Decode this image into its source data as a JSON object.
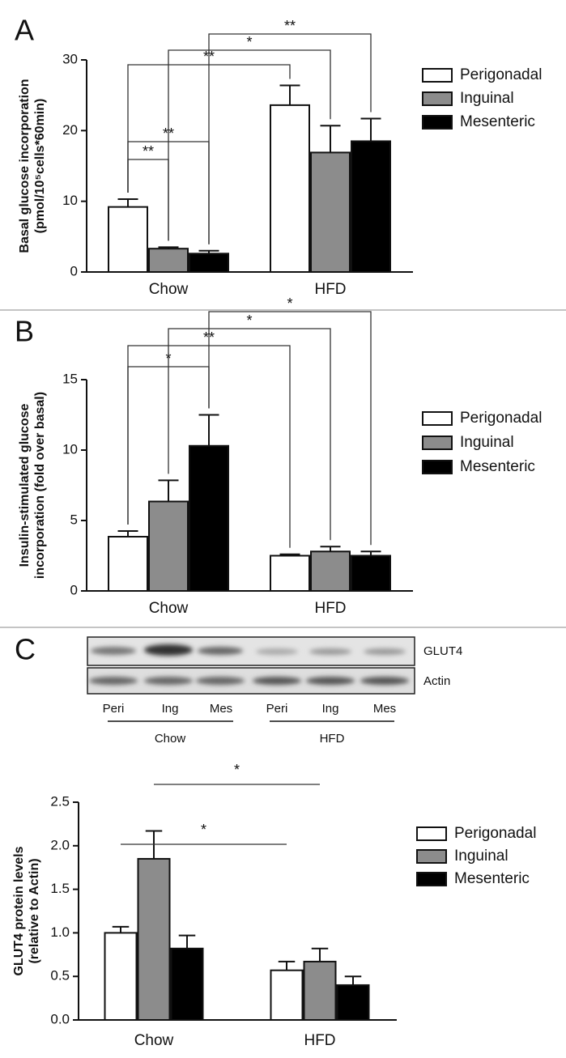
{
  "chart_data": [
    {
      "panel": "A",
      "type": "bar",
      "ylabel": [
        "Basal glucose incorporation",
        "(pmol/10⁵cells*60min)"
      ],
      "categories": [
        "Chow",
        "HFD"
      ],
      "series": [
        {
          "name": "Perigonadal",
          "color": "#ffffff",
          "values": [
            9.2,
            23.6
          ],
          "errors": [
            1.1,
            2.8
          ]
        },
        {
          "name": "Inguinal",
          "color": "#8c8c8c",
          "values": [
            3.3,
            16.9
          ],
          "errors": [
            0.2,
            3.8
          ]
        },
        {
          "name": "Mesenteric",
          "color": "#000000",
          "values": [
            2.6,
            18.5
          ],
          "errors": [
            0.4,
            3.2
          ]
        }
      ],
      "ylim": [
        0,
        30
      ],
      "yticks": [
        0,
        10,
        20,
        30
      ],
      "bracket_legs": true,
      "annotations": [
        {
          "label": "**",
          "from": [
            0,
            0
          ],
          "to": [
            1,
            0
          ]
        },
        {
          "label": "**",
          "from": [
            0,
            0
          ],
          "to": [
            2,
            0
          ]
        },
        {
          "label": "**",
          "from": [
            0,
            0
          ],
          "to": [
            0,
            1
          ]
        },
        {
          "label": "*",
          "from": [
            1,
            0
          ],
          "to": [
            1,
            1
          ]
        },
        {
          "label": "**",
          "from": [
            2,
            0
          ],
          "to": [
            2,
            1
          ]
        }
      ]
    },
    {
      "panel": "B",
      "type": "bar",
      "ylabel": [
        "Insulin-stimulated glucose",
        "incorporation (fold over basal)"
      ],
      "categories": [
        "Chow",
        "HFD"
      ],
      "series": [
        {
          "name": "Perigonadal",
          "color": "#ffffff",
          "values": [
            3.85,
            2.5
          ],
          "errors": [
            0.4,
            0.1
          ]
        },
        {
          "name": "Inguinal",
          "color": "#8c8c8c",
          "values": [
            6.35,
            2.8
          ],
          "errors": [
            1.5,
            0.35
          ]
        },
        {
          "name": "Mesenteric",
          "color": "#000000",
          "values": [
            10.3,
            2.5
          ],
          "errors": [
            2.2,
            0.3
          ]
        }
      ],
      "ylim": [
        0,
        15
      ],
      "yticks": [
        0,
        5,
        10,
        15
      ],
      "bracket_legs": true,
      "annotations": [
        {
          "label": "*",
          "from": [
            0,
            0
          ],
          "to": [
            2,
            0
          ]
        },
        {
          "label": "**",
          "from": [
            0,
            0
          ],
          "to": [
            0,
            1
          ]
        },
        {
          "label": "*",
          "from": [
            1,
            0
          ],
          "to": [
            1,
            1
          ]
        },
        {
          "label": "*",
          "from": [
            2,
            0
          ],
          "to": [
            2,
            1
          ]
        }
      ]
    },
    {
      "panel": "C",
      "type": "bar",
      "blot": {
        "rows": [
          "GLUT4",
          "Actin"
        ],
        "lanes": [
          "Peri",
          "Ing",
          "Mes",
          "Peri",
          "Ing",
          "Mes"
        ],
        "groups": [
          "Chow",
          "HFD"
        ]
      },
      "ylabel": [
        "GLUT4 protein levels",
        "(relative to Actin)"
      ],
      "categories": [
        "Chow",
        "HFD"
      ],
      "series": [
        {
          "name": "Perigonadal",
          "color": "#ffffff",
          "values": [
            1.0,
            0.57
          ],
          "errors": [
            0.07,
            0.1
          ]
        },
        {
          "name": "Inguinal",
          "color": "#8c8c8c",
          "values": [
            1.85,
            0.67
          ],
          "errors": [
            0.32,
            0.15
          ]
        },
        {
          "name": "Mesenteric",
          "color": "#000000",
          "values": [
            0.82,
            0.4
          ],
          "errors": [
            0.15,
            0.1
          ]
        }
      ],
      "ylim": [
        0,
        2.5
      ],
      "yticks": [
        {
          "value": 0,
          "label": "0.0"
        },
        0.5,
        {
          "value": 1,
          "label": "1.0"
        },
        1.5,
        {
          "value": 2,
          "label": "2.0"
        },
        2.5
      ],
      "bracket_legs": false,
      "annotations": [
        {
          "label": "*",
          "from": [
            0,
            0
          ],
          "to": [
            0,
            1
          ]
        },
        {
          "label": "*",
          "from": [
            1,
            0
          ],
          "to": [
            1,
            1
          ]
        }
      ]
    }
  ]
}
